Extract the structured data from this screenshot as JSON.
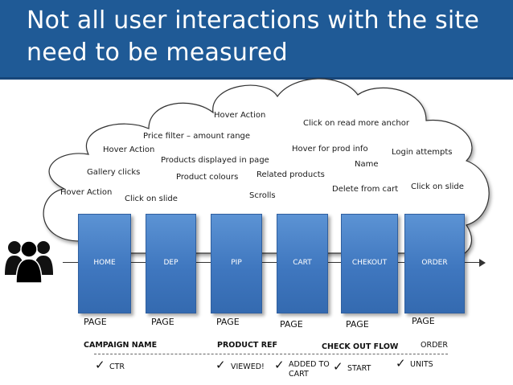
{
  "header": {
    "title_line1": "Not all user interactions with the site",
    "title_line2": "need to be measured"
  },
  "cloud_labels": [
    "Hover Action",
    "Click on read more anchor",
    "Price filter – amount range",
    "Hover Action",
    "Hover for prod info",
    "Login attempts",
    "Products displayed in page",
    "Name",
    "Gallery clicks",
    "Product colours",
    "Related products",
    "Hover Action",
    "Delete from cart",
    "Click on slide",
    "Scrolls",
    "Click on slide"
  ],
  "pages": [
    "HOME",
    "DEP",
    "PIP",
    "CART",
    "CHEKOUT",
    "ORDER"
  ],
  "page_labels": [
    "PAGE",
    "PAGE",
    "PAGE",
    "PAGE",
    "PAGE",
    "PAGE"
  ],
  "metrics_header": {
    "campaign": "CAMPAIGN NAME",
    "product": "PRODUCT REF",
    "checkout": "CHECK OUT FLOW",
    "order": "ORDER"
  },
  "metrics": {
    "ctr": "CTR",
    "viewed": "VIEWED!",
    "added_line1": "ADDED TO",
    "added_line2": "CART",
    "start": "START",
    "units": "UNITS"
  },
  "icons": {
    "users": "users-group-icon",
    "check": "check-icon"
  },
  "colors": {
    "header_bg": "#1f5a96",
    "page_box": "#3f77bf"
  }
}
